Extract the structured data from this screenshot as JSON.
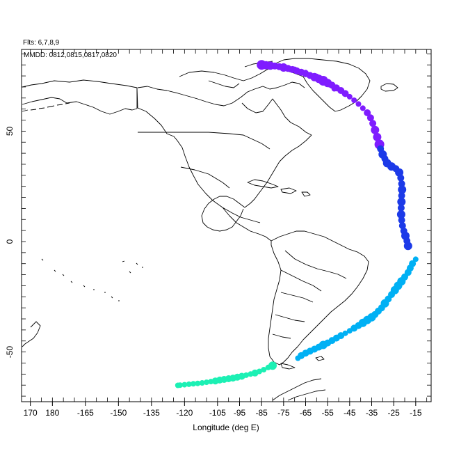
{
  "header": {
    "flights_label": "Flts: 6,7,8,9",
    "dates_label": "MMDD: 0812,0815,0817,0820"
  },
  "xaxis": {
    "label": "Longitude (deg E)",
    "ticks": [
      {
        "lon": 170,
        "label": "170"
      },
      {
        "lon": 180,
        "label": "180"
      },
      {
        "lon": 195,
        "label": "-165"
      },
      {
        "lon": 210,
        "label": "-150"
      },
      {
        "lon": 225,
        "label": "-135"
      },
      {
        "lon": 240,
        "label": "-120"
      },
      {
        "lon": 255,
        "label": "-105"
      },
      {
        "lon": 265,
        "label": "-95"
      },
      {
        "lon": 275,
        "label": "-85"
      },
      {
        "lon": 285,
        "label": "-75"
      },
      {
        "lon": 295,
        "label": "-65"
      },
      {
        "lon": 305,
        "label": "-55"
      },
      {
        "lon": 315,
        "label": "-45"
      },
      {
        "lon": 325,
        "label": "-35"
      },
      {
        "lon": 335,
        "label": "-25"
      },
      {
        "lon": 345,
        "label": "-15"
      }
    ],
    "minor_step": 5,
    "range": [
      166,
      352
    ]
  },
  "yaxis": {
    "label": "",
    "ticks": [
      {
        "lat": 50,
        "label": "50"
      },
      {
        "lat": 0,
        "label": "0"
      },
      {
        "lat": -50,
        "label": "-50"
      }
    ],
    "minor_step": 5,
    "range": [
      -72.5,
      87
    ]
  },
  "flights": [
    {
      "flight": 6,
      "color": "#7f1cff",
      "points": [
        [
          275,
          80,
          7
        ],
        [
          277,
          79.8,
          6
        ],
        [
          279,
          79.7,
          6
        ],
        [
          281,
          79.5,
          5
        ],
        [
          283,
          79.2,
          5
        ],
        [
          285,
          78.8,
          6
        ],
        [
          287,
          78.4,
          5
        ],
        [
          289,
          77.9,
          5
        ],
        [
          291,
          77.3,
          5
        ],
        [
          293,
          76.7,
          5
        ],
        [
          295,
          76,
          5
        ],
        [
          297,
          75.2,
          5
        ],
        [
          299,
          74.5,
          6
        ],
        [
          301,
          73.7,
          6
        ],
        [
          303,
          72.8,
          7
        ],
        [
          305,
          71.8,
          6
        ],
        [
          307,
          70.8,
          5
        ],
        [
          309,
          69.6,
          5
        ],
        [
          311,
          68.4,
          5
        ],
        [
          313,
          67,
          5
        ],
        [
          315,
          65.6,
          4
        ],
        [
          317,
          64,
          4
        ],
        [
          319,
          62.3,
          4
        ],
        [
          321,
          60.4,
          4
        ],
        [
          323,
          58.3,
          5
        ],
        [
          324.5,
          56,
          5
        ],
        [
          325.5,
          53.5,
          5
        ],
        [
          326.5,
          50.5,
          6
        ],
        [
          327.5,
          47.3,
          6
        ],
        [
          328.5,
          44,
          7
        ],
        [
          285,
          79.5,
          4
        ],
        [
          290,
          78,
          4
        ],
        [
          295,
          76.5,
          4
        ],
        [
          300,
          74.8,
          4
        ],
        [
          303,
          73,
          5
        ],
        [
          306,
          71,
          4
        ],
        [
          308,
          69.2,
          4
        ]
      ]
    },
    {
      "flight": 7,
      "color": "#1c3ae8",
      "points": [
        [
          329,
          42,
          5
        ],
        [
          330,
          39.5,
          6
        ],
        [
          331,
          37.5,
          5
        ],
        [
          332,
          35.5,
          6
        ],
        [
          334,
          34,
          6
        ],
        [
          336,
          33,
          5
        ],
        [
          337.5,
          31.3,
          6
        ],
        [
          338.2,
          28.8,
          5
        ],
        [
          338.6,
          26.2,
          5
        ],
        [
          338.8,
          23.5,
          6
        ],
        [
          338.6,
          20.8,
          5
        ],
        [
          338.5,
          18,
          6
        ],
        [
          338.4,
          15.2,
          5
        ],
        [
          338.4,
          12.3,
          6
        ],
        [
          338.6,
          9.7,
          5
        ],
        [
          339,
          7.2,
          5
        ],
        [
          339.6,
          4.8,
          5
        ],
        [
          340.3,
          2.6,
          6
        ],
        [
          341,
          0.3,
          5
        ],
        [
          341.5,
          -2,
          6
        ]
      ]
    },
    {
      "flight": 8,
      "color": "#00b0f4",
      "points": [
        [
          345,
          -8,
          4
        ],
        [
          343.5,
          -10,
          5
        ],
        [
          342.5,
          -12,
          5
        ],
        [
          341.5,
          -14,
          5
        ],
        [
          340,
          -16,
          5
        ],
        [
          338.5,
          -18,
          6
        ],
        [
          337,
          -20,
          6
        ],
        [
          335.5,
          -22,
          6
        ],
        [
          334,
          -24,
          5
        ],
        [
          332.5,
          -26,
          5
        ],
        [
          331,
          -28,
          6
        ],
        [
          329.5,
          -30,
          5
        ],
        [
          328,
          -31.5,
          5
        ],
        [
          326.5,
          -33,
          5
        ],
        [
          325,
          -34.3,
          6
        ],
        [
          323,
          -35.5,
          6
        ],
        [
          321,
          -36.8,
          6
        ],
        [
          319,
          -38,
          5
        ],
        [
          317,
          -39.2,
          5
        ],
        [
          315,
          -40.4,
          4
        ],
        [
          313,
          -41.5,
          4
        ],
        [
          311,
          -42.6,
          5
        ],
        [
          309,
          -43.7,
          5
        ],
        [
          307,
          -44.8,
          5
        ],
        [
          305,
          -45.9,
          5
        ],
        [
          303,
          -46.8,
          6
        ],
        [
          301,
          -47.8,
          5
        ],
        [
          299,
          -48.7,
          5
        ],
        [
          297,
          -49.6,
          5
        ],
        [
          295,
          -50.5,
          5
        ],
        [
          293,
          -51.6,
          5
        ],
        [
          291.5,
          -52.8,
          4
        ]
      ]
    },
    {
      "flight": 9,
      "color": "#1cf0b4",
      "points": [
        [
          280,
          -56.2,
          6
        ],
        [
          278,
          -57,
          4
        ],
        [
          276,
          -58,
          4
        ],
        [
          274,
          -58.8,
          4
        ],
        [
          272,
          -59.5,
          5
        ],
        [
          270,
          -60,
          4
        ],
        [
          268,
          -60.5,
          4
        ],
        [
          266,
          -61,
          5
        ],
        [
          264,
          -61.4,
          5
        ],
        [
          262,
          -61.8,
          5
        ],
        [
          260,
          -62.1,
          5
        ],
        [
          258,
          -62.4,
          5
        ],
        [
          256,
          -62.7,
          5
        ],
        [
          254,
          -63.1,
          5
        ],
        [
          252,
          -63.4,
          4
        ],
        [
          250,
          -63.7,
          4
        ],
        [
          248,
          -64,
          4
        ],
        [
          246,
          -64.2,
          4
        ],
        [
          244,
          -64.4,
          4
        ],
        [
          242,
          -64.6,
          4
        ],
        [
          240,
          -64.8,
          4
        ],
        [
          238,
          -65,
          4
        ],
        [
          237,
          -65.1,
          4
        ]
      ]
    }
  ]
}
